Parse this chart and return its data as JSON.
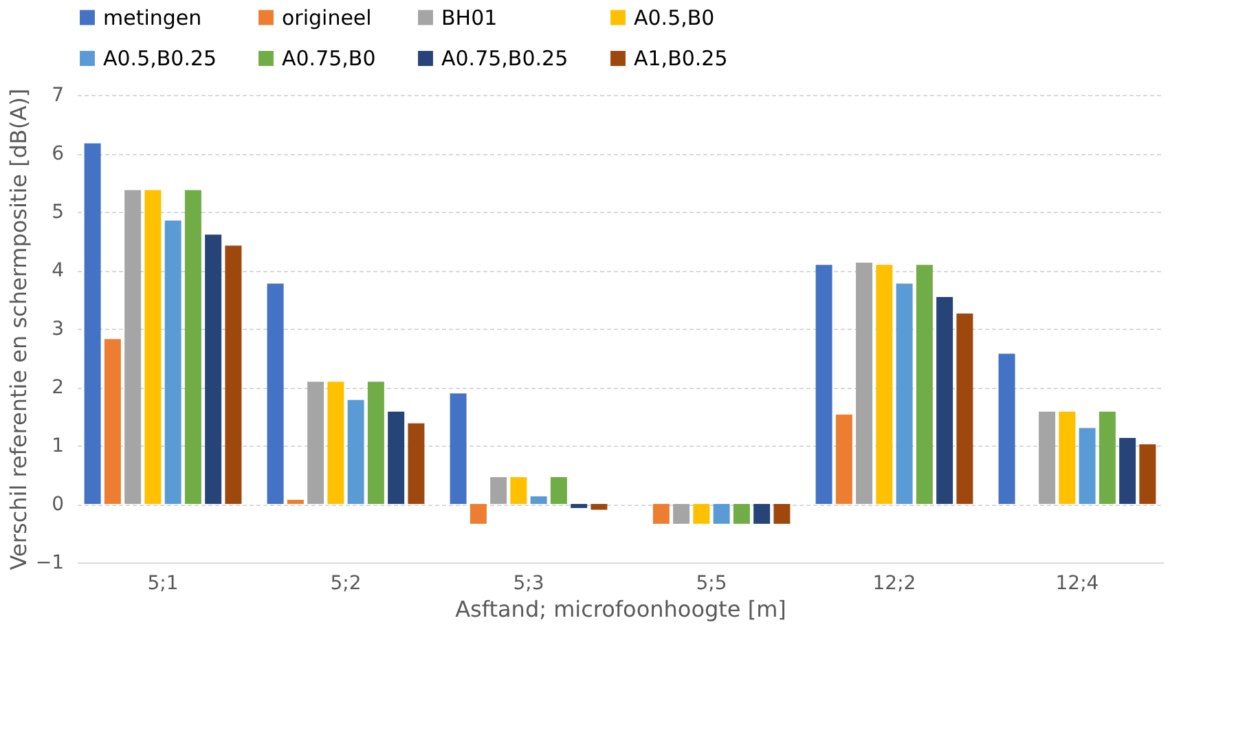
{
  "chart_data": {
    "type": "bar",
    "xlabel": "Asftand; microfoonhoogte [m]",
    "ylabel": "Verschil referentie en schermpositie [dB(A)]",
    "categories": [
      "5;1",
      "5;2",
      "5;3",
      "5;5",
      "12;2",
      "12;4"
    ],
    "ylim": [
      -1,
      7
    ],
    "yticks": [
      -1,
      0,
      1,
      2,
      3,
      4,
      5,
      6,
      7
    ],
    "grid": "y",
    "legend": "top",
    "series": [
      {
        "name": "metingen",
        "color": "#4472c4",
        "values": [
          6.17,
          3.77,
          1.89,
          null,
          4.09,
          2.57
        ]
      },
      {
        "name": "origineel",
        "color": "#ed7d31",
        "values": [
          2.82,
          0.07,
          -0.34,
          -0.34,
          1.53,
          null
        ]
      },
      {
        "name": "BH01",
        "color": "#a5a5a5",
        "values": [
          5.37,
          2.09,
          0.46,
          -0.34,
          4.13,
          1.58
        ]
      },
      {
        "name": "A0.5,B0",
        "color": "#ffc000",
        "values": [
          5.37,
          2.09,
          0.46,
          -0.34,
          4.09,
          1.58
        ]
      },
      {
        "name": "A0.5,B0.25",
        "color": "#5b9bd5",
        "values": [
          4.85,
          1.78,
          0.13,
          -0.34,
          3.77,
          1.3
        ]
      },
      {
        "name": "A0.75,B0",
        "color": "#70ad47",
        "values": [
          5.37,
          2.09,
          0.46,
          -0.34,
          4.09,
          1.58
        ]
      },
      {
        "name": "A0.75,B0.25",
        "color": "#264478",
        "values": [
          4.61,
          1.58,
          -0.07,
          -0.34,
          3.54,
          1.13
        ]
      },
      {
        "name": "A1,B0.25",
        "color": "#9e480e",
        "values": [
          4.42,
          1.38,
          -0.1,
          -0.34,
          3.26,
          1.02
        ]
      }
    ]
  }
}
